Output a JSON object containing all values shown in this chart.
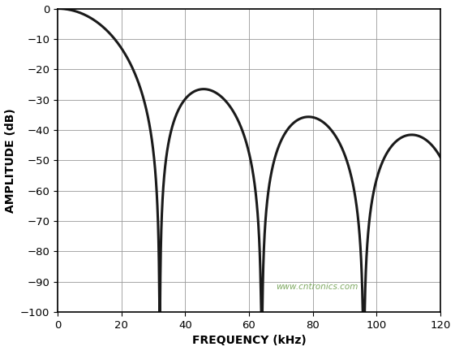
{
  "title": "",
  "xlabel": "FREQUENCY (kHz)",
  "ylabel": "AMPLITUDE (dB)",
  "xlim": [
    0,
    120
  ],
  "ylim": [
    -100,
    0
  ],
  "xticks": [
    0,
    20,
    40,
    60,
    80,
    100,
    120
  ],
  "yticks": [
    0,
    -10,
    -20,
    -30,
    -40,
    -50,
    -60,
    -70,
    -80,
    -90,
    -100
  ],
  "line_color": "#1a1a1a",
  "line_width": 2.2,
  "background_color": "#ffffff",
  "grid_color": "#999999",
  "watermark": "www.cntronics.com",
  "f_null1": 32.0,
  "sinc_order": 3,
  "xlabel_fontsize": 10,
  "ylabel_fontsize": 10,
  "tick_fontsize": 9.5
}
